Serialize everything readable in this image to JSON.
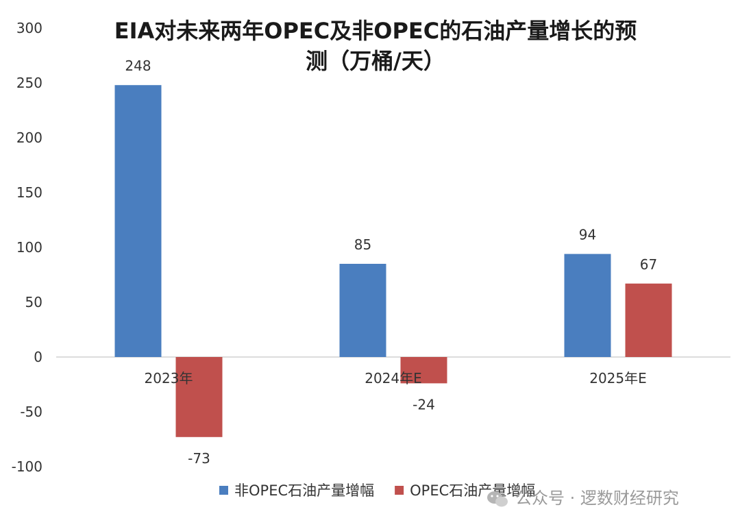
{
  "chart_data": {
    "type": "bar",
    "title_line1": "EIA对未来两年OPEC及非OPEC的石油产量增长的预",
    "title_line2": "测（万桶/天）",
    "categories": [
      "2023年",
      "2024年E",
      "2025年E"
    ],
    "series": [
      {
        "name": "非OPEC石油产量增幅",
        "color": "#4a7ebf",
        "values": [
          248,
          85,
          94
        ]
      },
      {
        "name": "OPEC石油产量增幅",
        "color": "#c0504d",
        "values": [
          -73,
          -24,
          67
        ]
      }
    ],
    "ylim": [
      -100,
      300
    ],
    "yticks": [
      300,
      250,
      200,
      150,
      100,
      50,
      0,
      -50,
      -100
    ],
    "grid": false,
    "legend_position": "bottom"
  },
  "watermark": {
    "text": "公众号 · 逻数财经研究",
    "icon": "wechat-icon"
  }
}
